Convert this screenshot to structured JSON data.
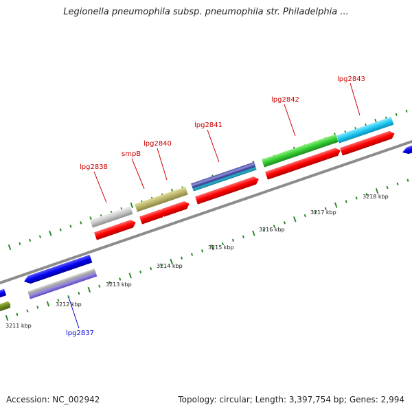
{
  "title": "Legionella pneumophila subsp. pneumophila str. Philadelphia ...",
  "footer": {
    "accession": "Accession: NC_002942",
    "topology": "Topology: circular; Length: 3,397,754 bp; Genes: 2,994"
  },
  "scale_labels": [
    "3211 kbp",
    "3212 kbp",
    "3213 kbp",
    "3214 kbp",
    "3215 kbp",
    "3216 kbp",
    "3217 kbp",
    "3218 kbp"
  ],
  "gene_labels": [
    {
      "name": "lpg2837",
      "color": "#0000cc"
    },
    {
      "name": "lpg2838",
      "color": "#cc0000"
    },
    {
      "name": "smpB",
      "color": "#cc0000"
    },
    {
      "name": "lpg2840",
      "color": "#cc0000"
    },
    {
      "name": "lpg2841",
      "color": "#cc0000"
    },
    {
      "name": "lpg2842",
      "color": "#cc0000"
    },
    {
      "name": "lpg2843",
      "color": "#cc0000"
    }
  ],
  "colors": {
    "backbone": "#8c8c8c",
    "tick": "#2b8a2b",
    "red_feature": "#ff0000",
    "blue_feature": "#0000ee"
  }
}
